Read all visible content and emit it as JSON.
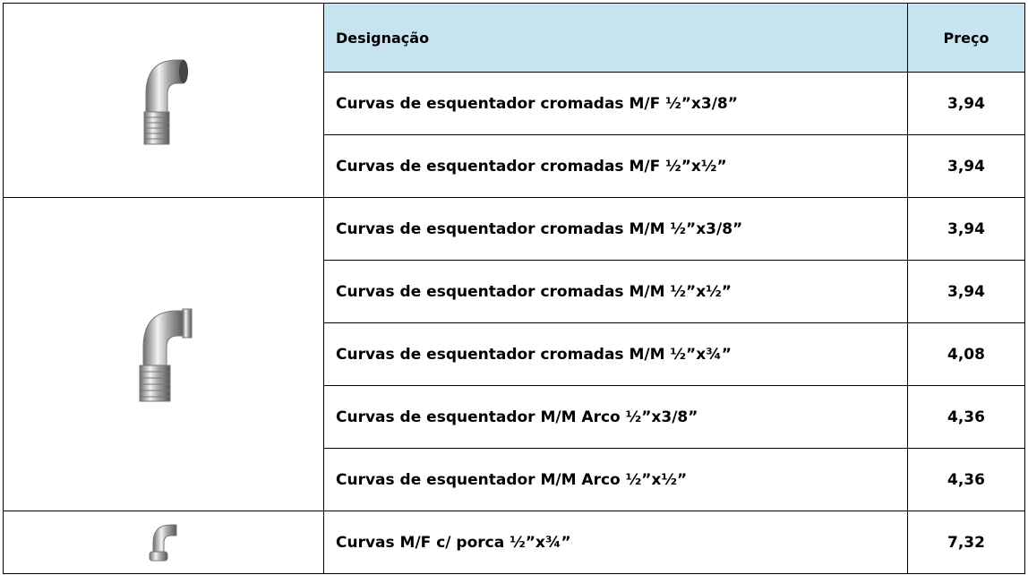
{
  "header": {
    "designation": "Designação",
    "price": "Preço"
  },
  "table": {
    "rows": [
      {
        "designation": "Curvas de esquentador cromadas M/F ½”x3/8”",
        "price": "3,94"
      },
      {
        "designation": "Curvas de esquentador cromadas M/F ½”x½”",
        "price": "3,94"
      },
      {
        "designation": "Curvas de esquentador cromadas M/M ½”x3/8”",
        "price": "3,94"
      },
      {
        "designation": "Curvas de esquentador cromadas M/M ½”x½”",
        "price": "3,94"
      },
      {
        "designation": "Curvas de esquentador cromadas M/M ½”x¾”",
        "price": "4,08"
      },
      {
        "designation": "Curvas de esquentador M/M Arco ½”x3/8”",
        "price": "4,36"
      },
      {
        "designation": "Curvas de esquentador M/M Arco ½”x½”",
        "price": "4,36"
      },
      {
        "designation": "Curvas M/F c/ porca ½”x¾”",
        "price": "7,32"
      }
    ]
  }
}
